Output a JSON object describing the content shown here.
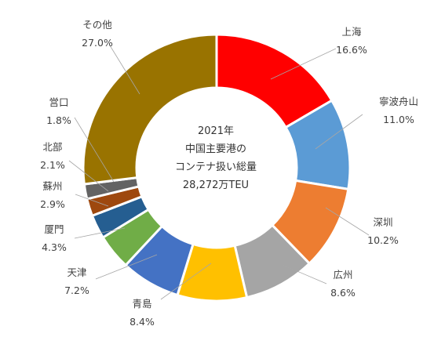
{
  "chart_data": {
    "type": "pie",
    "variant": "donut",
    "center_text": [
      "2021年",
      "中国主要港の",
      "コンテナ扱い総量",
      "28,272万TEU"
    ],
    "slices": [
      {
        "label": "上海",
        "value_label": "16.6%",
        "value": 16.6,
        "color": "#FF0000"
      },
      {
        "label": "寧波舟山",
        "value_label": "11.0%",
        "value": 11.0,
        "color": "#5B9BD5"
      },
      {
        "label": "深圳",
        "value_label": "10.2%",
        "value": 10.2,
        "color": "#ED7D31"
      },
      {
        "label": "広州",
        "value_label": "8.6%",
        "value": 8.6,
        "color": "#A5A5A5"
      },
      {
        "label": "青島",
        "value_label": "8.4%",
        "value": 8.4,
        "color": "#FFC000"
      },
      {
        "label": "天津",
        "value_label": "7.2%",
        "value": 7.2,
        "color": "#4472C4"
      },
      {
        "label": "厦門",
        "value_label": "4.3%",
        "value": 4.3,
        "color": "#70AD47"
      },
      {
        "label": "蘇州",
        "value_label": "2.9%",
        "value": 2.9,
        "color": "#255E91"
      },
      {
        "label": "北部",
        "value_label": "2.1%",
        "value": 2.1,
        "color": "#9E480E"
      },
      {
        "label": "営口",
        "value_label": "1.8%",
        "value": 1.8,
        "color": "#636363"
      },
      {
        "label": "その他",
        "value_label": "27.0%",
        "value": 27.0,
        "color": "#997300"
      }
    ]
  }
}
